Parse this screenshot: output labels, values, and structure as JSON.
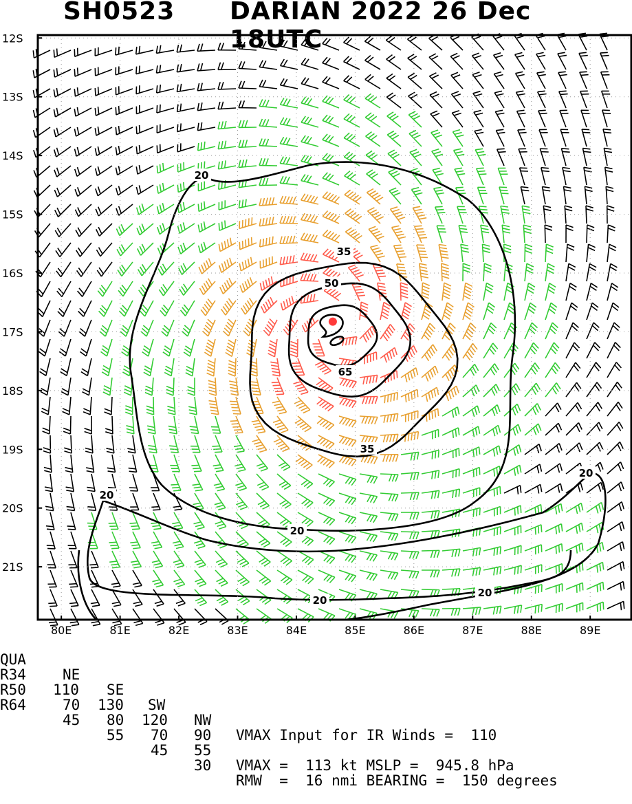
{
  "title": {
    "storm_id": "SH0523",
    "storm_info": "DARIAN 2022 26 Dec 18UTC"
  },
  "map": {
    "lon_labels": [
      "80E",
      "81E",
      "82E",
      "83E",
      "84E",
      "85E",
      "86E",
      "87E",
      "88E",
      "89E"
    ],
    "lat_labels": [
      "12S",
      "13S",
      "14S",
      "15S",
      "16S",
      "17S",
      "18S",
      "19S",
      "20S",
      "21S"
    ],
    "lon_range": [
      79.6,
      89.7
    ],
    "lat_range": [
      -21.9,
      -11.95
    ],
    "center": {
      "lon": 84.62,
      "lat": -16.92
    },
    "contour_labels": [
      "20",
      "20",
      "20",
      "20",
      "20",
      "35",
      "35",
      "50",
      "65"
    ],
    "wind_colors": {
      "low": "#000000",
      "ts": "#33cc33",
      "strong": "#e8a030",
      "hurricane": "#ff5a4a"
    }
  },
  "table": {
    "header": {
      "qua": "QUA",
      "ne": "NE",
      "se": "SE",
      "sw": "SW",
      "nw": "NW",
      "text": "VMAX Input for IR Winds =  110"
    },
    "rows": [
      {
        "label": "R34",
        "ne": "110",
        "se": "130",
        "sw": "120",
        "nw": "90",
        "text": ""
      },
      {
        "label": "R50",
        "ne": "70",
        "se": "80",
        "sw": "70",
        "nw": "55",
        "text": "VMAX =  113 kt MSLP =  945.8 hPa"
      },
      {
        "label": "R64",
        "ne": "45",
        "se": "55",
        "sw": "45",
        "nw": "30",
        "text": "RMW  =  16 nmi BEARING =  150 degrees"
      }
    ]
  }
}
